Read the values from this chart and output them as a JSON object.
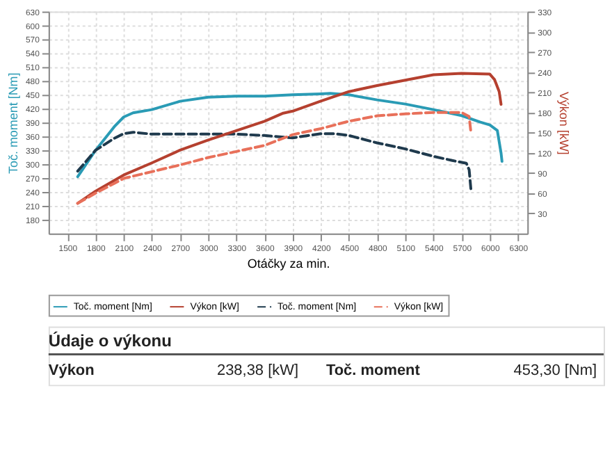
{
  "chart_data": {
    "type": "line",
    "xlabel": "Otáčky za min.",
    "ylabel": "Toč. moment [Nm]",
    "y2label": "Výkon [kW]",
    "xlim": [
      1300,
      6400
    ],
    "xticks": [
      1500,
      1800,
      2100,
      2400,
      2700,
      3000,
      3300,
      3600,
      3900,
      4200,
      4500,
      4800,
      5100,
      5400,
      5700,
      6000,
      6300
    ],
    "ylim": [
      150,
      630
    ],
    "yticks": [
      180,
      210,
      240,
      270,
      300,
      330,
      360,
      390,
      420,
      450,
      480,
      510,
      540,
      570,
      600,
      630
    ],
    "y2lim": [
      0,
      330
    ],
    "y2ticks": [
      30,
      60,
      90,
      120,
      150,
      180,
      210,
      240,
      270,
      300,
      330
    ],
    "grid": true,
    "legend": "bottom",
    "marker": "none",
    "series": [
      {
        "name": "Toč. moment [Nm]",
        "color": "#2a9bb5",
        "line_style": "solid",
        "x": [
          1610,
          1800,
          2000,
          2100,
          2200,
          2400,
          2700,
          3000,
          3300,
          3600,
          3900,
          4200,
          4300,
          4500,
          4800,
          5100,
          5400,
          5700,
          5900,
          6000,
          6080,
          6120,
          6130
        ],
        "values": [
          273,
          330,
          381,
          402,
          411,
          418,
          436,
          445,
          447,
          447,
          450,
          452,
          453,
          450,
          439,
          430,
          418,
          405,
          391,
          385,
          373,
          324,
          306
        ]
      },
      {
        "name": "Výkon [kW]",
        "color": "#b5402f",
        "line_style": "solid",
        "axis": "y2",
        "x": [
          1610,
          1800,
          2100,
          2400,
          2700,
          3000,
          3300,
          3600,
          3800,
          3900,
          4200,
          4500,
          4800,
          5100,
          5400,
          5700,
          6000,
          6050,
          6100,
          6120
        ],
        "values": [
          45,
          63,
          87,
          105,
          124,
          139,
          153,
          167,
          179,
          182,
          197,
          211,
          220,
          228,
          236,
          238,
          237,
          229,
          211,
          192
        ]
      },
      {
        "name": "Toč. moment [Nm]",
        "color": "#1f3a4d",
        "line_style": "dashed",
        "x": [
          1610,
          1800,
          2000,
          2100,
          2200,
          2400,
          3000,
          3300,
          3600,
          3900,
          4200,
          4350,
          4500,
          4800,
          5100,
          5400,
          5600,
          5750,
          5780,
          5800
        ],
        "values": [
          285,
          330,
          356,
          366,
          369,
          365,
          365,
          365,
          362,
          357,
          366,
          366,
          362,
          346,
          333,
          317,
          308,
          302,
          288,
          243
        ]
      },
      {
        "name": "Výkon [kW]",
        "color": "#e8705a",
        "line_style": "dashed",
        "axis": "y2",
        "x": [
          1610,
          1800,
          2100,
          2400,
          2700,
          3000,
          3300,
          3600,
          3900,
          4200,
          4500,
          4800,
          5100,
          5400,
          5700,
          5780,
          5800
        ],
        "values": [
          45,
          60,
          82,
          92,
          102,
          113,
          122,
          131,
          147,
          156,
          167,
          175,
          178,
          180,
          180,
          174,
          149
        ]
      }
    ],
    "annotations": [
      "Údaje o výkonu",
      "Výkon",
      "238,38 [kW]",
      "Toč. moment",
      "453,30 [Nm]"
    ]
  }
}
